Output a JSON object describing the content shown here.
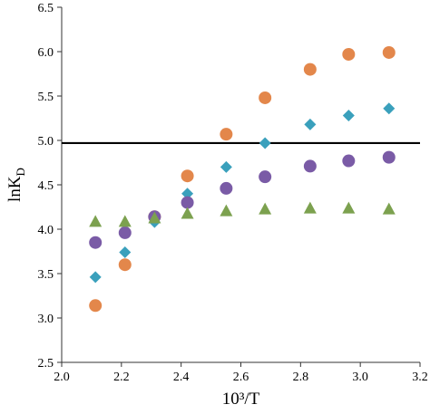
{
  "chart_data": {
    "type": "scatter",
    "title": "",
    "xlabel": "10³/T",
    "ylabel": "lnK",
    "ylabel_subscript": "D",
    "xlim": [
      2.0,
      3.2
    ],
    "ylim": [
      2.5,
      6.5
    ],
    "xticks": [
      2.0,
      2.2,
      2.4,
      2.6,
      2.8,
      3.0,
      3.2
    ],
    "yticks": [
      2.5,
      3.0,
      3.5,
      4.0,
      4.5,
      5.0,
      5.5,
      6.0,
      6.5
    ],
    "xtick_labels": [
      "2.0",
      "2.2",
      "2.4",
      "2.6",
      "2.8",
      "3.0",
      "3.2"
    ],
    "ytick_labels": [
      "2.5",
      "3.0",
      "3.5",
      "4.0",
      "4.5",
      "5.0",
      "5.5",
      "6.0",
      "6.5"
    ],
    "grid": false,
    "legend": "none",
    "reference_line": {
      "y": 4.97,
      "color": "#000000"
    },
    "series": [
      {
        "marker": "circle",
        "color": "#E3874B",
        "x": [
          2.113,
          2.212,
          2.311,
          2.421,
          2.551,
          2.681,
          2.832,
          2.961,
          3.096
        ],
        "y": [
          3.14,
          3.6,
          4.14,
          4.6,
          5.07,
          5.48,
          5.8,
          5.97,
          5.99
        ]
      },
      {
        "marker": "diamond",
        "color": "#3AA0BC",
        "x": [
          2.113,
          2.212,
          2.311,
          2.421,
          2.551,
          2.681,
          2.832,
          2.961,
          3.096
        ],
        "y": [
          3.46,
          3.74,
          4.08,
          4.4,
          4.7,
          4.97,
          5.18,
          5.28,
          5.36
        ]
      },
      {
        "marker": "circle",
        "color": "#7A5BA6",
        "x": [
          2.113,
          2.212,
          2.311,
          2.421,
          2.551,
          2.681,
          2.832,
          2.961,
          3.096
        ],
        "y": [
          3.85,
          3.96,
          4.14,
          4.3,
          4.46,
          4.59,
          4.71,
          4.77,
          4.81
        ]
      },
      {
        "marker": "triangle",
        "color": "#7CA14F",
        "x": [
          2.113,
          2.212,
          2.311,
          2.421,
          2.551,
          2.681,
          2.832,
          2.961,
          3.096
        ],
        "y": [
          4.08,
          4.08,
          4.12,
          4.17,
          4.2,
          4.22,
          4.23,
          4.23,
          4.22
        ]
      }
    ]
  }
}
